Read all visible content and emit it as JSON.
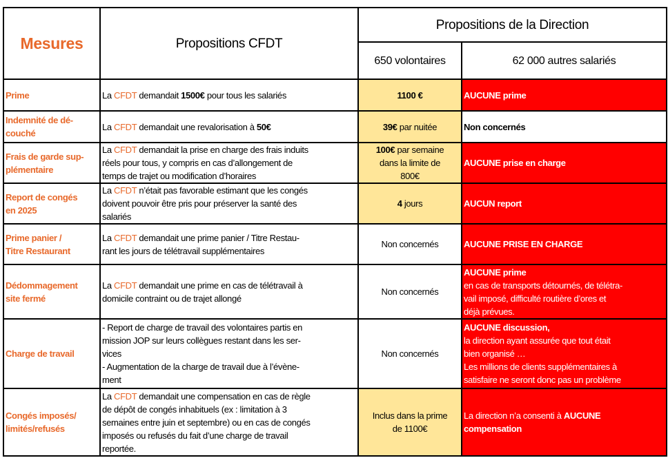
{
  "colors": {
    "accent_orange": "#e8692b",
    "volunteer_fill": "#ffe699",
    "alert_red": "#ff0000"
  },
  "header": {
    "mesures": "Mesures",
    "cfdt": "Propositions CFDT",
    "direction": "Propositions de la Direction",
    "volontaires": "650 volontaires",
    "autres": "62 000 autres salariés"
  },
  "rows": [
    {
      "mesure": "Prime",
      "cfdt": [
        {
          "t": "La "
        },
        {
          "t": "CFDT",
          "s": "o"
        },
        {
          "t": " demandait "
        },
        {
          "t": "1500€",
          "s": "b"
        },
        {
          "t": " pour tous les salariés"
        }
      ],
      "vol": [
        {
          "t": "1100 €",
          "s": "b"
        }
      ],
      "vol_style": "y",
      "autres": [
        {
          "t": "AUCUNE prime"
        }
      ],
      "autres_style": "r"
    },
    {
      "mesure": "Indemnité de dé-\ncouché",
      "cfdt": [
        {
          "t": "La "
        },
        {
          "t": "CFDT",
          "s": "o"
        },
        {
          "t": " demandait une revalorisation à "
        },
        {
          "t": "50€",
          "s": "b"
        }
      ],
      "vol": [
        {
          "t": "39€",
          "s": "b"
        },
        {
          "t": " par nuitée"
        }
      ],
      "vol_style": "y",
      "autres": [
        {
          "t": "Non concernés",
          "s": "b"
        }
      ],
      "autres_style": "w"
    },
    {
      "mesure": "Frais de garde sup-\nplémentaire",
      "cfdt": [
        {
          "t": "La "
        },
        {
          "t": "CFDT",
          "s": "o"
        },
        {
          "t": " demandait la prise en charge des frais induits\nréels pour tous, y compris en cas d’allongement de\ntemps de trajet ou modification d’horaires"
        }
      ],
      "vol": [
        {
          "t": "100€",
          "s": "b"
        },
        {
          "t": " par semaine\ndans la limite de\n800€"
        }
      ],
      "vol_style": "y",
      "autres": [
        {
          "t": "AUCUNE prise en charge"
        }
      ],
      "autres_style": "r"
    },
    {
      "mesure": "Report de congés\nen 2025",
      "cfdt": [
        {
          "t": "La "
        },
        {
          "t": "CFDT",
          "s": "o"
        },
        {
          "t": " n’était pas favorable estimant que les congés\ndoivent pouvoir être pris pour préserver la santé des\nsalariés"
        }
      ],
      "vol": [
        {
          "t": "4",
          "s": "b"
        },
        {
          "t": " jours"
        }
      ],
      "vol_style": "y",
      "autres": [
        {
          "t": "AUCUN report"
        }
      ],
      "autres_style": "r"
    },
    {
      "mesure": "Prime panier /\nTitre Restaurant",
      "cfdt": [
        {
          "t": "La "
        },
        {
          "t": "CFDT",
          "s": "o"
        },
        {
          "t": " demandait une prime panier / Titre Restau-\nrant les jours de télétravail supplémentaires"
        }
      ],
      "vol": [
        {
          "t": "Non concernés"
        }
      ],
      "vol_style": "w",
      "autres": [
        {
          "t": "AUCUNE PRISE EN CHARGE"
        }
      ],
      "autres_style": "r"
    },
    {
      "mesure": "Dédommagement\nsite fermé",
      "cfdt": [
        {
          "t": "La "
        },
        {
          "t": "CFDT",
          "s": "o"
        },
        {
          "t": " demandait une prime en cas de télétravail à\ndomicile contraint ou de trajet allongé"
        }
      ],
      "vol": [
        {
          "t": "Non concernés"
        }
      ],
      "vol_style": "w",
      "autres": [
        {
          "t": "AUCUNE prime\n"
        },
        {
          "t": "en cas de transports détournés, de télétra-\nvail imposé, difficulté routière d’ores et\ndéjà prévues.",
          "s": "p"
        }
      ],
      "autres_style": "r"
    },
    {
      "mesure": "Charge de travail",
      "cfdt": [
        {
          "t": "- Report de charge de travail des volontaires partis en\nmission JOP sur leurs collègues restant  dans les ser-\nvices\n- Augmentation de la charge de travail due à l’évène-\nment"
        }
      ],
      "vol": [
        {
          "t": "Non concernés"
        }
      ],
      "vol_style": "w",
      "autres": [
        {
          "t": "AUCUNE discussion,\n"
        },
        {
          "t": "la direction ayant assurée que tout était\nbien organisé …\nLes millions de clients supplémentaires à\nsatisfaire ne seront donc pas un problème",
          "s": "p"
        }
      ],
      "autres_style": "r"
    },
    {
      "mesure": "Congés imposés/\nlimités/refusés",
      "cfdt": [
        {
          "t": "La "
        },
        {
          "t": "CFDT",
          "s": "o"
        },
        {
          "t": " demandait une compensation en cas de règle\nde dépôt de congés inhabituels (ex : limitation à 3\nsemaines entre juin et septembre) ou en cas de congés\nimposés ou refusés du fait d’une charge de travail\nreportée."
        }
      ],
      "vol": [
        {
          "t": "Inclus dans la prime\nde 1100€"
        }
      ],
      "vol_style": "y",
      "autres": [
        {
          "t": "La direction n’a consenti à ",
          "s": "p"
        },
        {
          "t": "AUCUNE\ncompensation"
        }
      ],
      "autres_style": "r"
    }
  ]
}
